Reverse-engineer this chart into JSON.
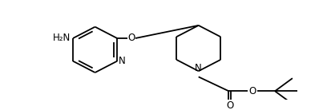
{
  "bg_color": "#ffffff",
  "line_color": "#000000",
  "lw": 1.3,
  "fs": 8.5,
  "figsize": [
    4.08,
    1.38
  ],
  "dpi": 100,
  "xlim": [
    0,
    408
  ],
  "ylim": [
    0,
    138
  ]
}
